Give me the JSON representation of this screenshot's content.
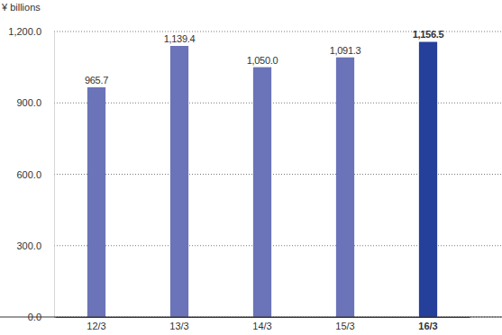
{
  "chart_data": {
    "type": "bar",
    "y_label": "¥ billions",
    "categories": [
      "12/3",
      "13/3",
      "14/3",
      "15/3",
      "16/3"
    ],
    "values": [
      965.7,
      1139.4,
      1050.0,
      1091.3,
      1156.5
    ],
    "value_labels": [
      "965.7",
      "1,139.4",
      "1,050.0",
      "1,091.3",
      "1,156.5"
    ],
    "colors": [
      "#6b74b8",
      "#6b74b8",
      "#6b74b8",
      "#6b74b8",
      "#25409a"
    ],
    "ylim": [
      0,
      1200
    ],
    "yticks": [
      {
        "value": 0,
        "label": "0.0"
      },
      {
        "value": 300,
        "label": "300.0"
      },
      {
        "value": 600,
        "label": "600.0"
      },
      {
        "value": 900,
        "label": "900.0"
      },
      {
        "value": 1200,
        "label": "1,200.0"
      }
    ],
    "grid": true,
    "data_labels": true
  }
}
